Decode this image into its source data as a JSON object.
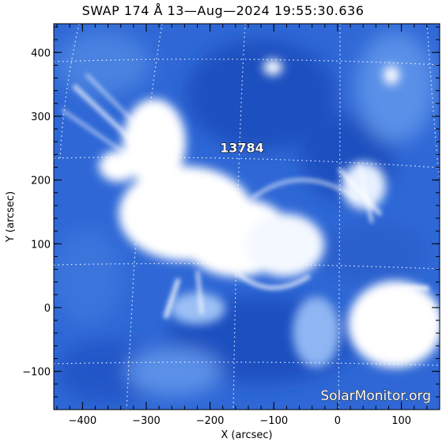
{
  "title": "SWAP 174 Å 13—Aug—2024 19:55:30.636",
  "axes": {
    "xlabel": "X (arcsec)",
    "ylabel": "Y (arcsec)",
    "xlim": [
      -445,
      160
    ],
    "ylim": [
      -160,
      445
    ],
    "xticks": [
      {
        "value": -400,
        "label": "−400"
      },
      {
        "value": -300,
        "label": "−300"
      },
      {
        "value": -200,
        "label": "−200"
      },
      {
        "value": -100,
        "label": "−100"
      },
      {
        "value": 0,
        "label": "0"
      },
      {
        "value": 100,
        "label": "100"
      }
    ],
    "yticks": [
      {
        "value": -100,
        "label": "−100"
      },
      {
        "value": 0,
        "label": "0"
      },
      {
        "value": 100,
        "label": "100"
      },
      {
        "value": 200,
        "label": "200"
      },
      {
        "value": 300,
        "label": "300"
      },
      {
        "value": 400,
        "label": "400"
      }
    ]
  },
  "active_region": {
    "label": "13784",
    "x": -150,
    "y": 240
  },
  "watermark": "SolarMonitor.org",
  "colors": {
    "background": "#ffffff",
    "corona_dark": "#1a4fc4",
    "corona_mid": "#5a8ee6",
    "corona_bright": "#ffffff"
  }
}
